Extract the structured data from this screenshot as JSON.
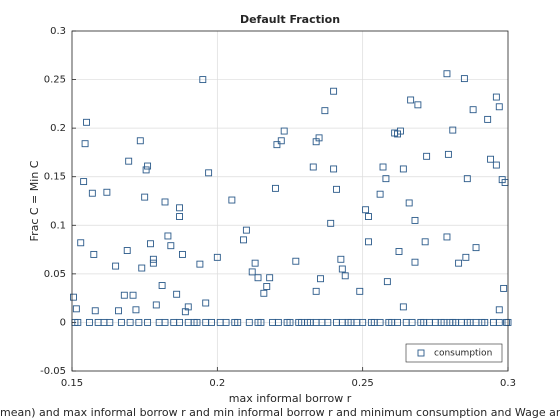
{
  "chart_data": {
    "type": "scatter",
    "title": "Default Fraction",
    "x_label": "max informal borrow r",
    "y_label": "Frac C = Min C",
    "annotation": "mean) and max informal borrow r and min informal borrow r and minimum consumption and Wage and CRRA and D",
    "xlim": [
      0.15,
      0.3
    ],
    "xticks": [
      0.15,
      0.2,
      0.25,
      0.3
    ],
    "ylim": [
      -0.05,
      0.3
    ],
    "yticks": [
      -0.05,
      0,
      0.05,
      0.1,
      0.15,
      0.2,
      0.25,
      0.3
    ],
    "grid": true,
    "legend": "southeast",
    "x": [
      0.1505,
      0.1515,
      0.153,
      0.154,
      0.1545,
      0.155,
      0.157,
      0.1575,
      0.158,
      0.162,
      0.165,
      0.166,
      0.168,
      0.169,
      0.1695,
      0.171,
      0.172,
      0.1735,
      0.174,
      0.175,
      0.1755,
      0.176,
      0.177,
      0.178,
      0.178,
      0.179,
      0.181,
      0.182,
      0.183,
      0.184,
      0.186,
      0.187,
      0.187,
      0.188,
      0.189,
      0.19,
      0.194,
      0.195,
      0.196,
      0.197,
      0.2,
      0.205,
      0.209,
      0.21,
      0.212,
      0.213,
      0.214,
      0.216,
      0.217,
      0.218,
      0.22,
      0.2205,
      0.222,
      0.223,
      0.227,
      0.233,
      0.234,
      0.235,
      0.237,
      0.24,
      0.239,
      0.24,
      0.241,
      0.2425,
      0.243,
      0.244,
      0.2355,
      0.234,
      0.249,
      0.251,
      0.252,
      0.252,
      0.256,
      0.257,
      0.258,
      0.2585,
      0.261,
      0.262,
      0.263,
      0.2625,
      0.264,
      0.264,
      0.266,
      0.2665,
      0.268,
      0.269,
      0.268,
      0.272,
      0.2715,
      0.279,
      0.2795,
      0.279,
      0.281,
      0.283,
      0.285,
      0.2855,
      0.286,
      0.288,
      0.289,
      0.293,
      0.294,
      0.296,
      0.296,
      0.297,
      0.297,
      0.298,
      0.2985,
      0.299,
      0.151,
      0.152,
      0.156,
      0.159,
      0.161,
      0.163,
      0.167,
      0.17,
      0.173,
      0.176,
      0.18,
      0.182,
      0.185,
      0.187,
      0.19,
      0.192,
      0.193,
      0.196,
      0.198,
      0.201,
      0.203,
      0.206,
      0.207,
      0.211,
      0.214,
      0.215,
      0.219,
      0.221,
      0.224,
      0.225,
      0.228,
      0.229,
      0.231,
      0.232,
      0.234,
      0.236,
      0.238,
      0.241,
      0.243,
      0.245,
      0.246,
      0.248,
      0.25,
      0.253,
      0.254,
      0.256,
      0.259,
      0.26,
      0.262,
      0.265,
      0.267,
      0.27,
      0.271,
      0.273,
      0.275,
      0.277,
      0.278,
      0.28,
      0.281,
      0.282,
      0.284,
      0.286,
      0.287,
      0.289,
      0.291,
      0.292,
      0.295,
      0.297,
      0.3,
      0.2995
    ],
    "series": [
      {
        "name": "consumption",
        "color": "#2b5a8a",
        "values": [
          0.026,
          0.014,
          0.082,
          0.145,
          0.184,
          0.206,
          0.133,
          0.07,
          0.012,
          0.134,
          0.058,
          0.012,
          0.028,
          0.074,
          0.166,
          0.028,
          0.013,
          0.187,
          0.056,
          0.129,
          0.157,
          0.161,
          0.081,
          0.065,
          0.061,
          0.018,
          0.038,
          0.124,
          0.089,
          0.079,
          0.029,
          0.118,
          0.109,
          0.07,
          0.011,
          0.016,
          0.06,
          0.25,
          0.02,
          0.154,
          0.067,
          0.126,
          0.085,
          0.095,
          0.052,
          0.061,
          0.046,
          0.03,
          0.037,
          0.046,
          0.138,
          0.183,
          0.187,
          0.197,
          0.063,
          0.16,
          0.186,
          0.19,
          0.218,
          0.238,
          0.102,
          0.158,
          0.137,
          0.065,
          0.055,
          0.048,
          0.045,
          0.032,
          0.032,
          0.116,
          0.109,
          0.083,
          0.132,
          0.16,
          0.148,
          0.042,
          0.195,
          0.194,
          0.197,
          0.073,
          0.016,
          0.158,
          0.123,
          0.229,
          0.062,
          0.224,
          0.105,
          0.171,
          0.083,
          0.256,
          0.173,
          0.088,
          0.198,
          0.061,
          0.251,
          0.067,
          0.148,
          0.219,
          0.077,
          0.209,
          0.168,
          0.232,
          0.162,
          0.222,
          0.013,
          0.147,
          0.035,
          0.144,
          0,
          0,
          0,
          0,
          0,
          0,
          0,
          0,
          0,
          0,
          0,
          0,
          0,
          0,
          0,
          0,
          0,
          0,
          0,
          0,
          0,
          0,
          0,
          0,
          0,
          0,
          0,
          0,
          0,
          0,
          0,
          0,
          0,
          0,
          0,
          0,
          0,
          0,
          0,
          0,
          0,
          0,
          0,
          0,
          0,
          0,
          0,
          0,
          0,
          0,
          0,
          0,
          0,
          0,
          0,
          0,
          0,
          0,
          0,
          0,
          0,
          0,
          0,
          0,
          0,
          0,
          0,
          0,
          0,
          0
        ]
      }
    ]
  }
}
